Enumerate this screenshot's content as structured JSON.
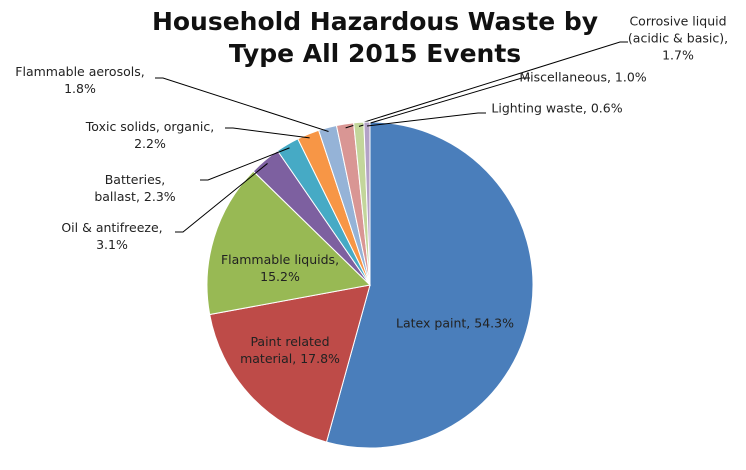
{
  "chart_data": {
    "type": "pie",
    "title": "Household Hazardous Waste by Type All 2015 Events",
    "values": [
      54.3,
      17.8,
      15.2,
      3.1,
      2.3,
      2.2,
      1.8,
      1.7,
      1.0,
      0.6
    ],
    "value_labels": [
      "Latex paint, 54.3%",
      "Paint related material, 17.8%",
      "Flammable liquids, 15.2%",
      "Oil & antifreeze, 3.1%",
      "Batteries, ballast, 2.3%",
      "Toxic solids, organic, 2.2%",
      "Flammable aerosols, 1.8%",
      "Corrosive liquid (acidic & basic), 1.7%",
      "Miscellaneous, 1.0%",
      "Lighting waste, 0.6%"
    ],
    "colors": [
      "#4a7ebb",
      "#be4b48",
      "#98b954",
      "#7d60a0",
      "#46aac5",
      "#f79646",
      "#95b3d7",
      "#d99694",
      "#c3d69b",
      "#b3a2c7"
    ],
    "start_angle": 0,
    "direction": "clockwise"
  }
}
